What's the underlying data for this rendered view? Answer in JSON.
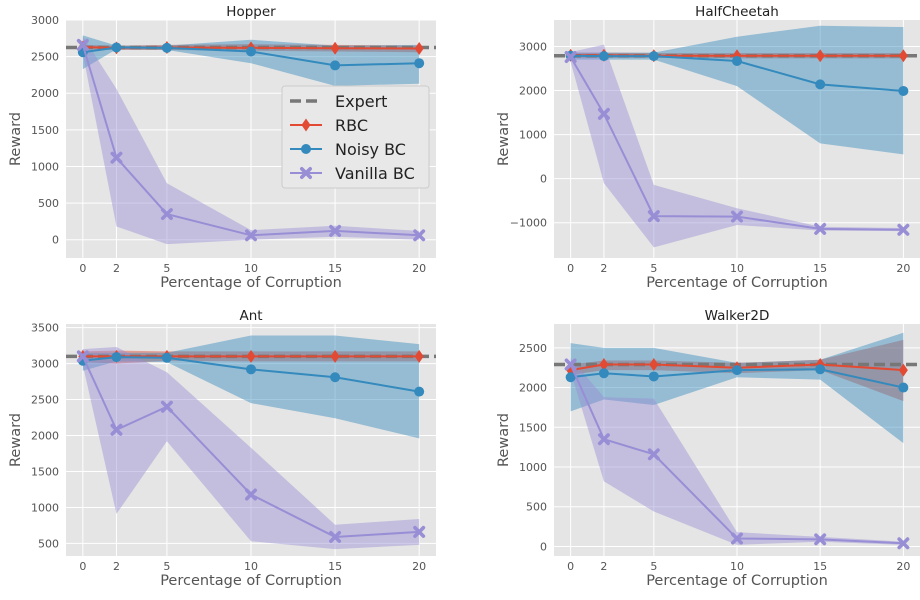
{
  "figure": {
    "xlabel": "Percentage of Corruption",
    "ylabel": "Reward"
  },
  "legend": {
    "placement": "center-right (Hopper panel)",
    "entries": [
      {
        "name": "Expert",
        "color": "#777777",
        "style": "dashed"
      },
      {
        "name": "RBC",
        "color": "#E24A33",
        "marker": "diamond"
      },
      {
        "name": "Noisy BC",
        "color": "#348ABD",
        "marker": "circle"
      },
      {
        "name": "Vanilla BC",
        "color": "#988ED5",
        "marker": "x"
      }
    ]
  },
  "chart_data": [
    {
      "type": "line",
      "title": "Hopper",
      "xlabel": "Percentage of Corruption",
      "ylabel": "Reward",
      "x": [
        0,
        2,
        5,
        10,
        15,
        20
      ],
      "xticks": [
        "0",
        "2",
        "5",
        "10",
        "15",
        "20"
      ],
      "xlim": [
        -1,
        21
      ],
      "ylim": [
        -250,
        3000
      ],
      "yticks": [
        0,
        500,
        1000,
        1500,
        2000,
        2500,
        3000
      ],
      "ytick_labels": [
        "0",
        "500",
        "1000",
        "1500",
        "2000",
        "2500",
        "3000"
      ],
      "expert": 2625,
      "grid": true,
      "series": [
        {
          "name": "RBC",
          "color": "#E24A33",
          "marker": "diamond",
          "values": [
            2630,
            2620,
            2625,
            2620,
            2615,
            2610
          ],
          "lower": [
            2600,
            2590,
            2590,
            2580,
            2570,
            2560
          ],
          "upper": [
            2660,
            2650,
            2660,
            2670,
            2660,
            2650
          ]
        },
        {
          "name": "Noisy BC",
          "color": "#348ABD",
          "marker": "circle",
          "values": [
            2560,
            2625,
            2620,
            2570,
            2380,
            2410
          ],
          "lower": [
            2330,
            2600,
            2590,
            2410,
            2100,
            2130
          ],
          "upper": [
            2790,
            2650,
            2650,
            2730,
            2650,
            2660
          ]
        },
        {
          "name": "Vanilla BC",
          "color": "#988ED5",
          "marker": "x",
          "values": [
            2660,
            1120,
            350,
            60,
            120,
            60
          ],
          "lower": [
            2540,
            180,
            -60,
            0,
            40,
            0
          ],
          "upper": [
            2780,
            2060,
            770,
            130,
            190,
            120
          ]
        }
      ]
    },
    {
      "type": "line",
      "title": "HalfCheetah",
      "xlabel": "Percentage of Corruption",
      "ylabel": "Reward",
      "x": [
        0,
        2,
        5,
        10,
        15,
        20
      ],
      "xticks": [
        "0",
        "2",
        "5",
        "10",
        "15",
        "20"
      ],
      "xlim": [
        -1,
        21
      ],
      "ylim": [
        -1800,
        3600
      ],
      "yticks": [
        -1000,
        0,
        1000,
        2000,
        3000
      ],
      "ytick_labels": [
        "−1000",
        "0",
        "1000",
        "2000",
        "3000"
      ],
      "expert": 2790,
      "grid": true,
      "series": [
        {
          "name": "RBC",
          "color": "#E24A33",
          "marker": "diamond",
          "values": [
            2800,
            2800,
            2790,
            2790,
            2790,
            2790
          ],
          "lower": [
            2740,
            2740,
            2740,
            2730,
            2730,
            2730
          ],
          "upper": [
            2860,
            2860,
            2850,
            2850,
            2850,
            2850
          ]
        },
        {
          "name": "Noisy BC",
          "color": "#348ABD",
          "marker": "circle",
          "values": [
            2790,
            2780,
            2780,
            2670,
            2140,
            1990
          ],
          "lower": [
            2700,
            2700,
            2700,
            2100,
            800,
            550
          ],
          "upper": [
            2860,
            2860,
            2860,
            3220,
            3470,
            3440
          ]
        },
        {
          "name": "Vanilla BC",
          "color": "#988ED5",
          "marker": "x",
          "values": [
            2760,
            1470,
            -850,
            -860,
            -1140,
            -1160
          ],
          "lower": [
            2650,
            -100,
            -1560,
            -1050,
            -1180,
            -1190
          ],
          "upper": [
            2870,
            3040,
            -140,
            -670,
            -1090,
            -1120
          ]
        }
      ]
    },
    {
      "type": "line",
      "title": "Ant",
      "xlabel": "Percentage of Corruption",
      "ylabel": "Reward",
      "x": [
        0,
        2,
        5,
        10,
        15,
        20
      ],
      "xticks": [
        "0",
        "2",
        "5",
        "10",
        "15",
        "20"
      ],
      "xlim": [
        -1,
        21
      ],
      "ylim": [
        325,
        3550
      ],
      "yticks": [
        500,
        1000,
        1500,
        2000,
        2500,
        3000,
        3500
      ],
      "ytick_labels": [
        "500",
        "1000",
        "1500",
        "2000",
        "2500",
        "3000",
        "3500"
      ],
      "expert": 3100,
      "grid": true,
      "series": [
        {
          "name": "RBC",
          "color": "#E24A33",
          "marker": "diamond",
          "values": [
            3100,
            3100,
            3100,
            3100,
            3100,
            3100
          ],
          "lower": [
            3020,
            3000,
            3040,
            3030,
            3030,
            3030
          ],
          "upper": [
            3170,
            3180,
            3170,
            3170,
            3170,
            3170
          ]
        },
        {
          "name": "Noisy BC",
          "color": "#348ABD",
          "marker": "circle",
          "values": [
            3040,
            3090,
            3080,
            2920,
            2810,
            2610
          ],
          "lower": [
            2900,
            3030,
            3020,
            2450,
            2240,
            1960
          ],
          "upper": [
            3150,
            3150,
            3150,
            3390,
            3390,
            3270
          ]
        },
        {
          "name": "Vanilla BC",
          "color": "#988ED5",
          "marker": "x",
          "values": [
            3100,
            2080,
            2400,
            1180,
            590,
            660
          ],
          "lower": [
            2980,
            910,
            1920,
            530,
            420,
            480
          ],
          "upper": [
            3200,
            3230,
            2880,
            1830,
            760,
            840
          ]
        }
      ]
    },
    {
      "type": "line",
      "title": "Walker2D",
      "xlabel": "Percentage of Corruption",
      "ylabel": "Reward",
      "x": [
        0,
        2,
        5,
        10,
        15,
        20
      ],
      "xticks": [
        "0",
        "2",
        "5",
        "10",
        "15",
        "20"
      ],
      "xlim": [
        -1,
        21
      ],
      "ylim": [
        -120,
        2800
      ],
      "yticks": [
        0,
        500,
        1000,
        1500,
        2000,
        2500
      ],
      "ytick_labels": [
        "0",
        "500",
        "1000",
        "1500",
        "2000",
        "2500"
      ],
      "expert": 2290,
      "grid": true,
      "series": [
        {
          "name": "RBC",
          "color": "#E24A33",
          "marker": "diamond",
          "values": [
            2220,
            2290,
            2290,
            2250,
            2290,
            2220
          ],
          "lower": [
            2160,
            2220,
            2220,
            2180,
            2220,
            1830
          ],
          "upper": [
            2290,
            2340,
            2340,
            2310,
            2350,
            2600
          ]
        },
        {
          "name": "Noisy BC",
          "color": "#348ABD",
          "marker": "circle",
          "values": [
            2130,
            2180,
            2140,
            2220,
            2230,
            2000
          ],
          "lower": [
            1700,
            1850,
            1780,
            2130,
            2100,
            1300
          ],
          "upper": [
            2560,
            2500,
            2500,
            2310,
            2350,
            2690
          ]
        },
        {
          "name": "Vanilla BC",
          "color": "#988ED5",
          "marker": "x",
          "values": [
            2290,
            1350,
            1160,
            100,
            90,
            40
          ],
          "lower": [
            2200,
            820,
            440,
            20,
            60,
            20
          ],
          "upper": [
            2370,
            1880,
            1860,
            180,
            120,
            60
          ]
        }
      ]
    }
  ]
}
